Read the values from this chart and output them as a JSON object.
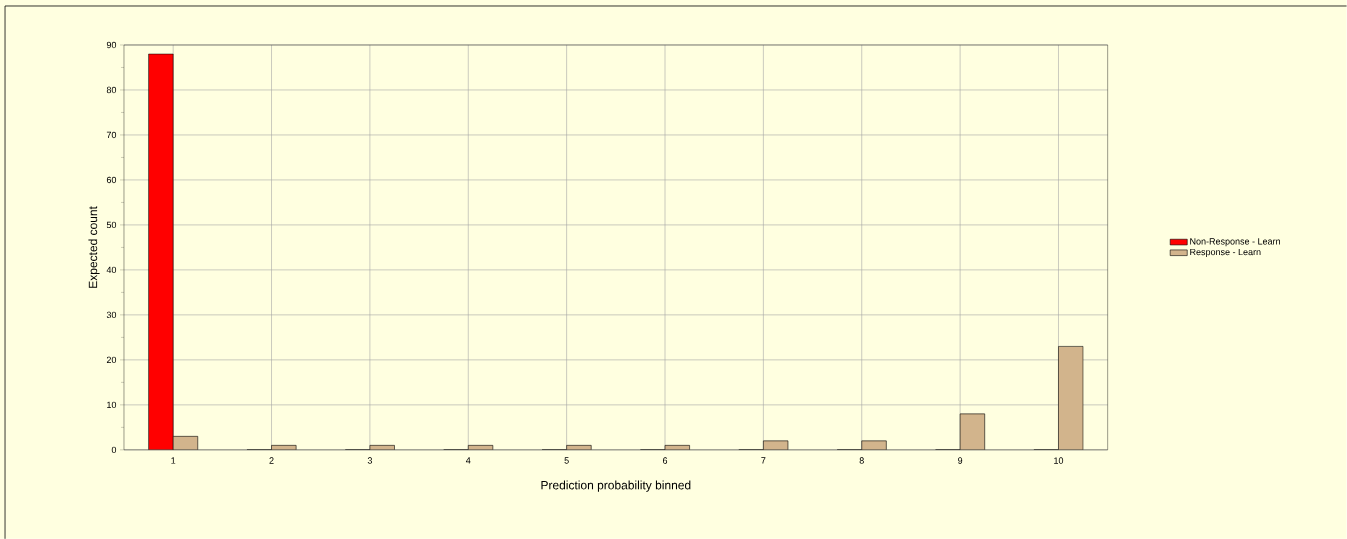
{
  "chart_data": {
    "type": "bar",
    "xlabel": "Prediction probability binned",
    "ylabel": "Expected count",
    "categories": [
      "1",
      "2",
      "3",
      "4",
      "5",
      "6",
      "7",
      "8",
      "9",
      "10"
    ],
    "series": [
      {
        "name": "Non-Response - Learn",
        "color": "#ff0000",
        "values": [
          88,
          0,
          0,
          0,
          0,
          0,
          0,
          0,
          0,
          0
        ]
      },
      {
        "name": "Response - Learn",
        "color": "#d2b48c",
        "values": [
          3,
          1,
          1,
          1,
          1,
          1,
          2,
          2,
          8,
          23
        ]
      }
    ],
    "ylim": [
      0,
      90
    ],
    "yticks": [
      0,
      10,
      20,
      30,
      40,
      50,
      60,
      70,
      80,
      90
    ],
    "grid": true,
    "legend": "right"
  }
}
